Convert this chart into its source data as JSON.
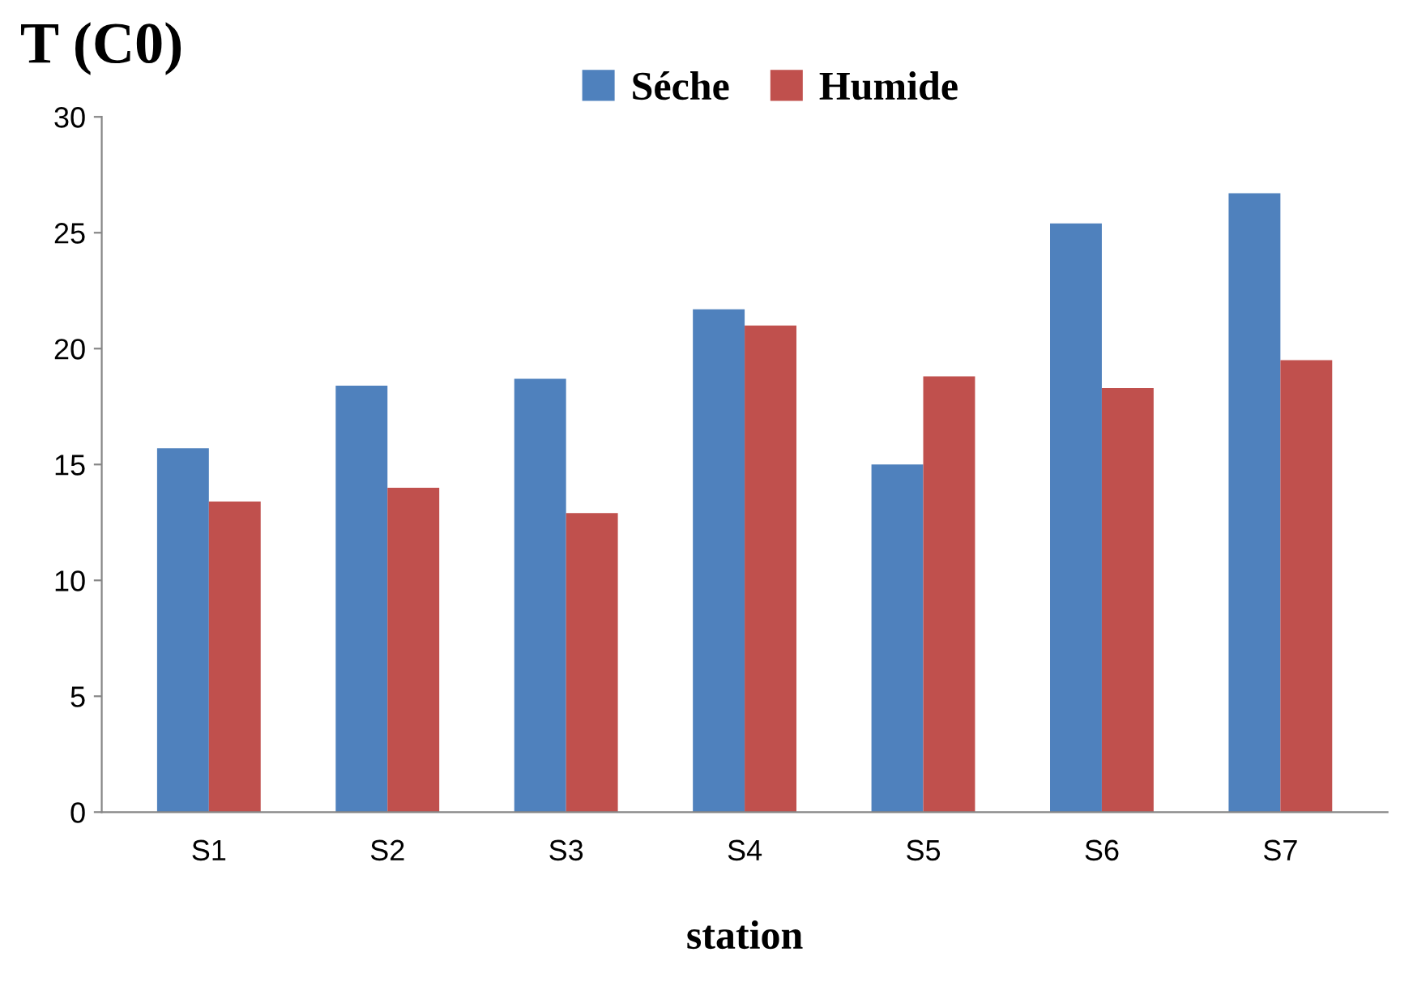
{
  "chart_data": {
    "type": "bar",
    "ylabel": "T (C0)",
    "xlabel": "station",
    "categories": [
      "S1",
      "S2",
      "S3",
      "S4",
      "S5",
      "S6",
      "S7"
    ],
    "series": [
      {
        "name": "Séche",
        "color": "#4f81bd",
        "values": [
          15.7,
          18.4,
          18.7,
          21.7,
          15.0,
          25.4,
          26.7
        ]
      },
      {
        "name": "Humide",
        "color": "#c0504d",
        "values": [
          13.4,
          14.0,
          12.9,
          21.0,
          18.8,
          18.3,
          19.5
        ]
      }
    ],
    "ylim": [
      0,
      30
    ],
    "yticks": [
      0,
      5,
      10,
      15,
      20,
      25,
      30
    ],
    "legend": "top"
  }
}
